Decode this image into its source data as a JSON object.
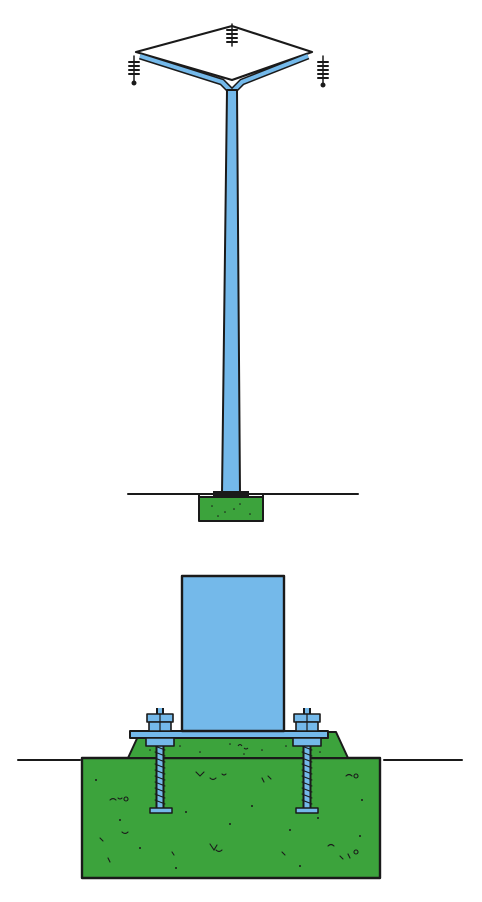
{
  "figure": {
    "description_title": "",
    "upper_view": "pole-elevation",
    "lower_view": "base-detail"
  },
  "colors": {
    "steel": "#74b9ea",
    "concrete": "#3ca33c",
    "ink": "#1a1a1a",
    "background": "#ffffff"
  },
  "icons": {
    "insulator": "insulator-icon",
    "anchor_bolt": "anchor-bolt-icon",
    "nut": "nut-icon"
  }
}
